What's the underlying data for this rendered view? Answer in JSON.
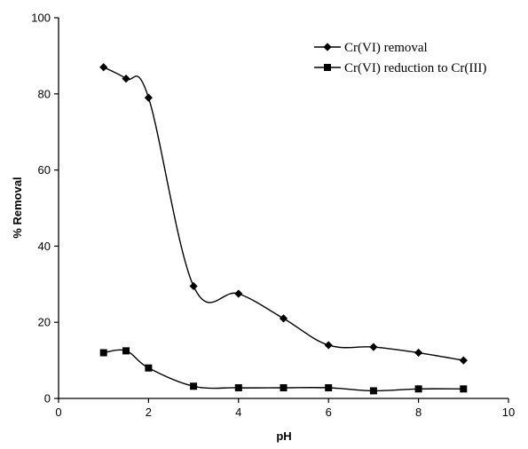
{
  "chart_data": {
    "type": "line",
    "title": "",
    "xlabel": "pH",
    "ylabel": "% Removal",
    "xlim": [
      0,
      10
    ],
    "ylim": [
      0,
      100
    ],
    "xticks": [
      0,
      2,
      4,
      6,
      8,
      10
    ],
    "yticks": [
      0,
      20,
      40,
      60,
      80,
      100
    ],
    "grid": false,
    "legend_position": "top-right",
    "smooth": true,
    "series": [
      {
        "name": "Cr(VI) removal",
        "marker": "diamond",
        "color": "#000000",
        "x": [
          1,
          1.5,
          2,
          3,
          4,
          5,
          6,
          7,
          8,
          9
        ],
        "y": [
          87,
          84,
          79,
          29.5,
          27.5,
          21,
          14,
          13.5,
          12,
          10
        ]
      },
      {
        "name": "Cr(VI) reduction to Cr(III)",
        "marker": "square",
        "color": "#000000",
        "x": [
          1,
          1.5,
          2,
          3,
          4,
          5,
          6,
          7,
          8,
          9
        ],
        "y": [
          12,
          12.5,
          8,
          3.2,
          2.8,
          2.8,
          2.8,
          2,
          2.5,
          2.5
        ]
      }
    ]
  }
}
